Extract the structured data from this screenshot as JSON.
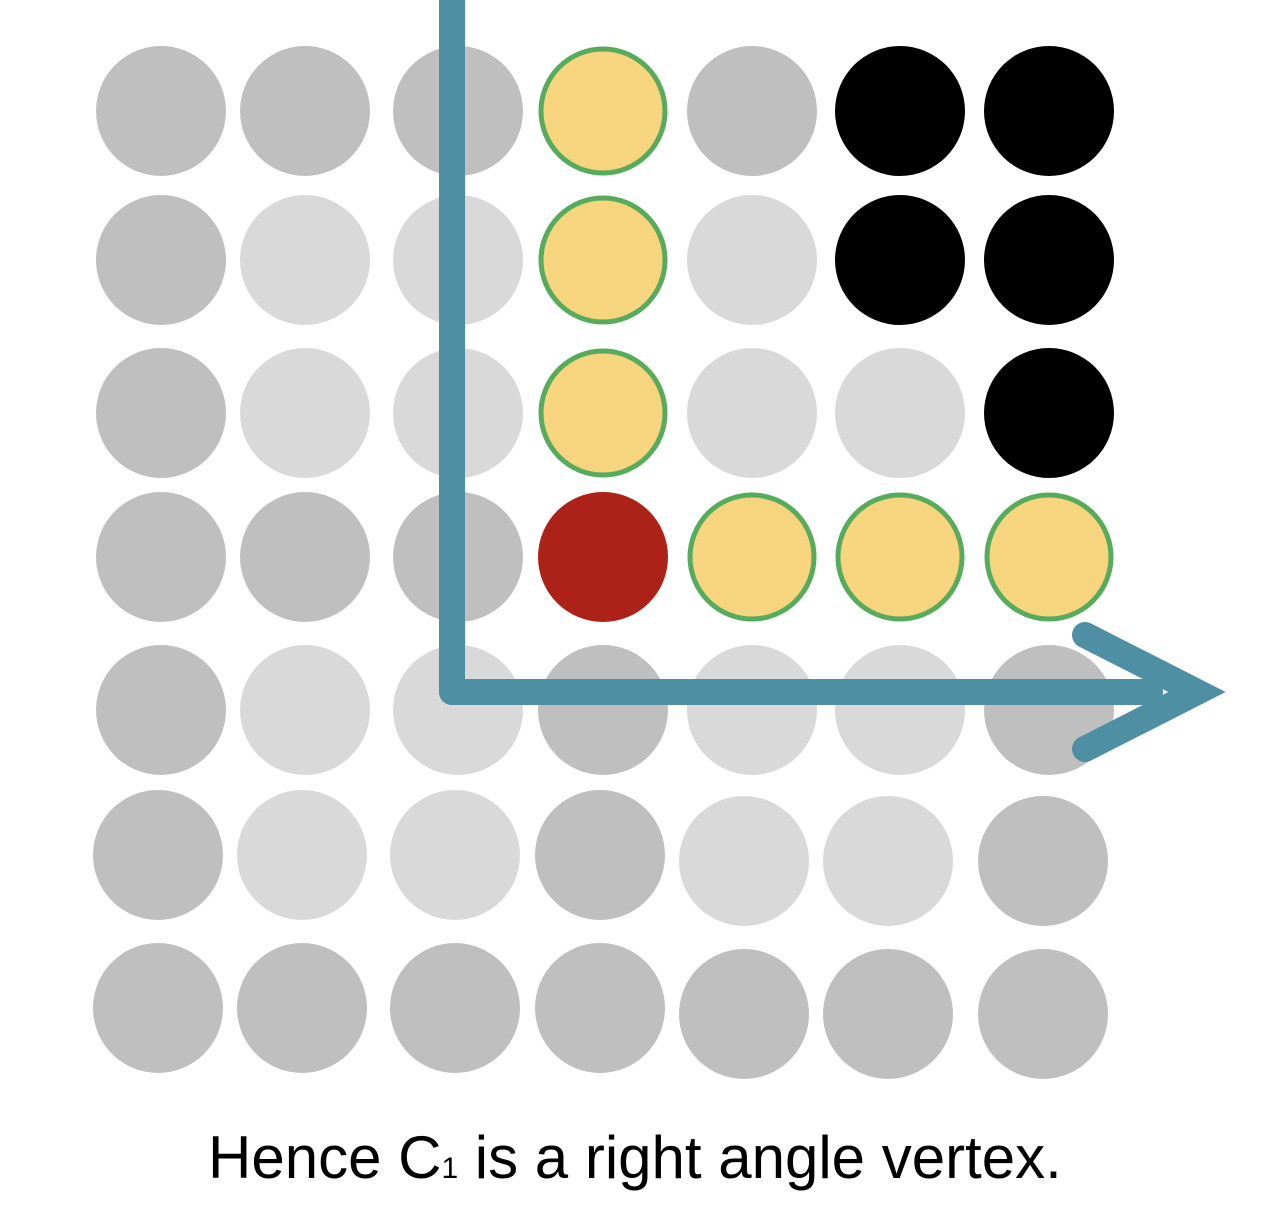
{
  "figure": {
    "description_label": "dot-grid-right-angle-diagram",
    "grid": {
      "rows": 7,
      "cols": 7,
      "cells": [
        [
          "dark-grey",
          "dark-grey",
          "dark-grey",
          "yellow",
          "dark-grey",
          "black",
          "black"
        ],
        [
          "dark-grey",
          "light-grey",
          "light-grey",
          "yellow",
          "light-grey",
          "black",
          "black"
        ],
        [
          "dark-grey",
          "light-grey",
          "light-grey",
          "yellow",
          "light-grey",
          "light-grey",
          "black"
        ],
        [
          "dark-grey",
          "dark-grey",
          "dark-grey",
          "red",
          "yellow",
          "yellow",
          "yellow"
        ],
        [
          "dark-grey",
          "light-grey",
          "light-grey",
          "dark-grey",
          "light-grey",
          "light-grey",
          "dark-grey"
        ],
        [
          "dark-grey",
          "light-grey",
          "light-grey",
          "dark-grey",
          "light-grey",
          "light-grey",
          "dark-grey"
        ],
        [
          "dark-grey",
          "dark-grey",
          "dark-grey",
          "dark-grey",
          "dark-grey",
          "dark-grey",
          "dark-grey"
        ]
      ]
    },
    "colors": {
      "dark-grey": "#bfbfbf",
      "light-grey": "#d9d9d9",
      "yellow": "#f7d47e",
      "yellow-stroke": "#56ac5c",
      "black": "#000000",
      "red": "#ad2218",
      "axis": "#4f8fa3"
    }
  },
  "caption": {
    "prefix": "Hence C",
    "subscript": "1",
    "suffix": " is a right angle vertex."
  }
}
